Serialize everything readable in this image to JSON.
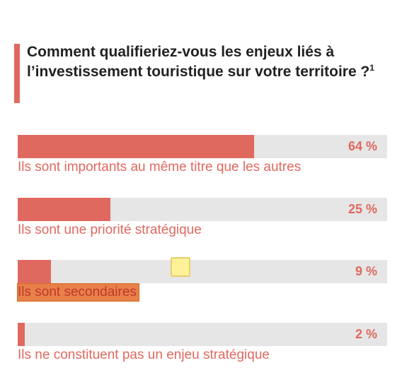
{
  "header": {
    "title": "Comment qualifieriez-vous les enjeux liés à l’investissement touristique sur votre territoire ?",
    "footnote": "1"
  },
  "colors": {
    "accent": "#e0695f",
    "track": "#e6e6e6",
    "highlight": "#e8804a",
    "marker": "#fdf29a"
  },
  "chart_data": {
    "type": "bar",
    "orientation": "horizontal",
    "title": "Comment qualifieriez-vous les enjeux liés à l’investissement touristique sur votre territoire ?",
    "xlim": [
      0,
      100
    ],
    "grid": false,
    "categories": [
      "Ils sont importants au même titre que les autres",
      "Ils sont une priorité stratégique",
      "Ils sont secondaires",
      "Ils ne constituent pas un enjeu stratégique"
    ],
    "values": [
      64,
      25,
      9,
      2
    ],
    "value_labels": [
      "64 %",
      "25 %",
      "9 %",
      "2 %"
    ]
  }
}
